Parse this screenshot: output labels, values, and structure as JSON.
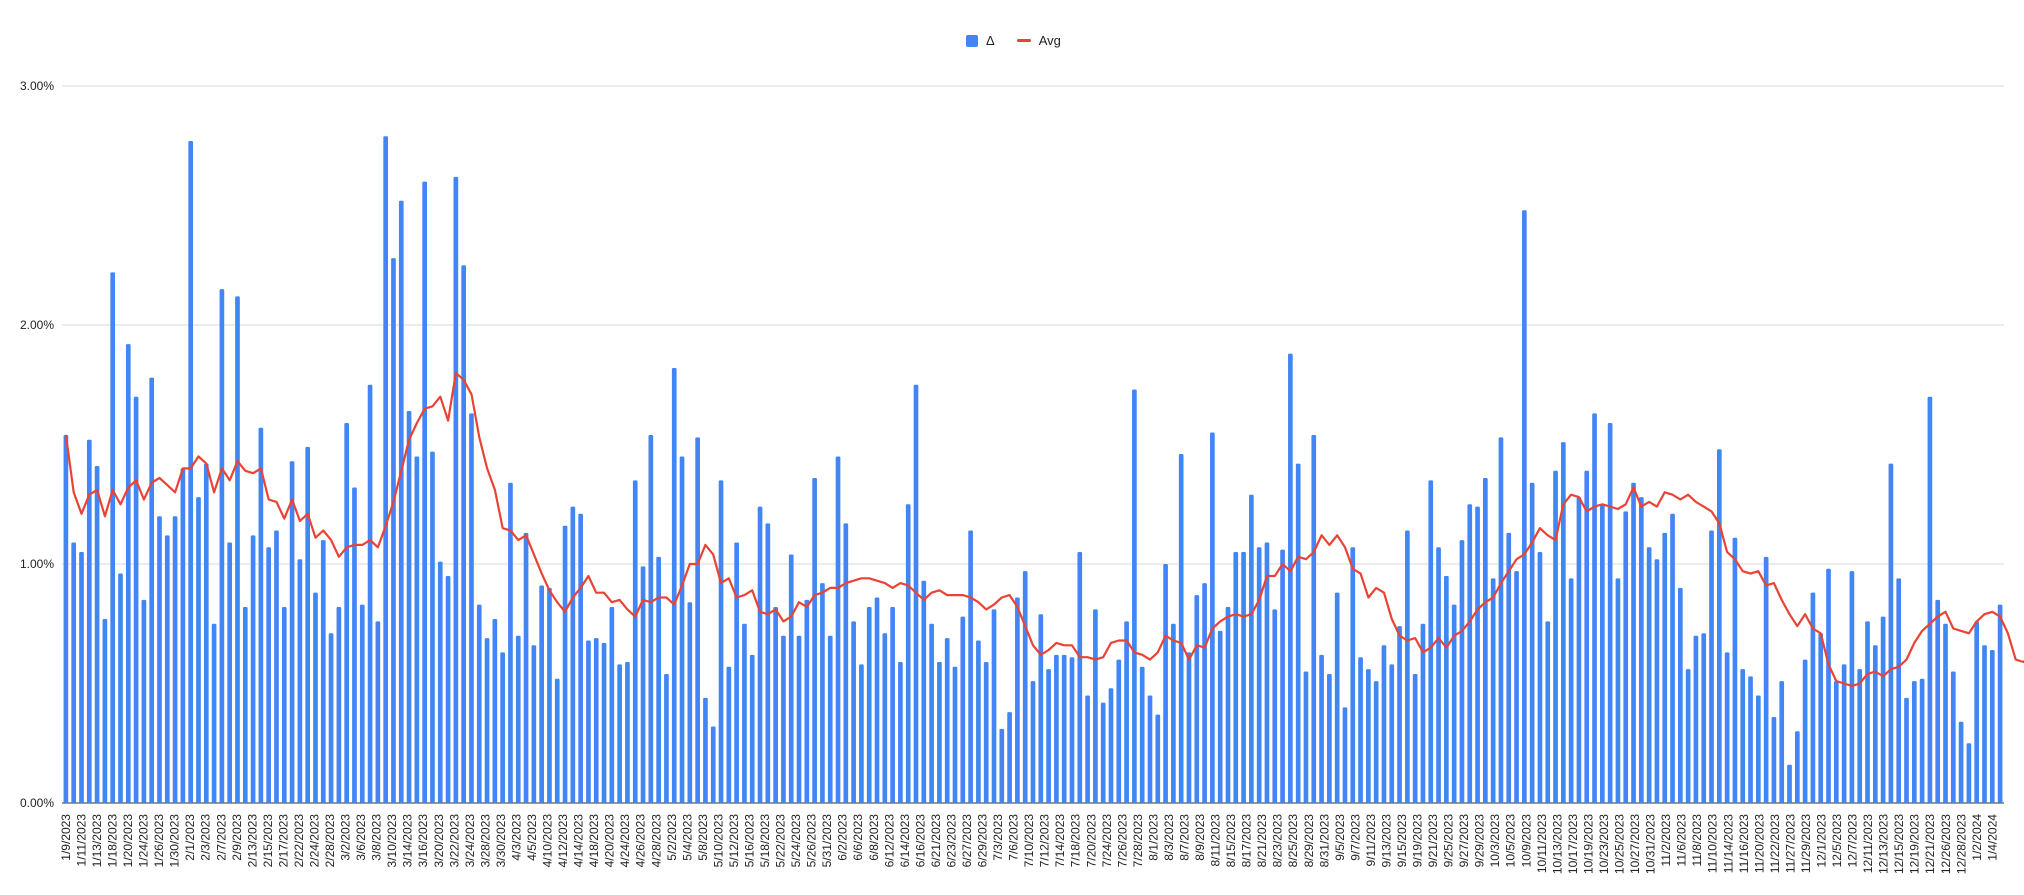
{
  "chart_data": {
    "type": "bar",
    "legend": {
      "position": "top",
      "bar_label": "Δ",
      "line_label": "Avg"
    },
    "yaxis": {
      "min": 0,
      "max": 0.03,
      "ticks": [
        "0.00%",
        "1.00%",
        "2.00%",
        "3.00%"
      ]
    },
    "grid": true,
    "colors": {
      "bar": "#4285f4",
      "line": "#ea4335",
      "grid": "#d9d9d9",
      "axis": "#333333"
    },
    "x_labels": [
      "1/9/2023",
      "1/11/2023",
      "1/13/2023",
      "1/18/2023",
      "1/20/2023",
      "1/24/2023",
      "1/26/2023",
      "1/30/2023",
      "2/1/2023",
      "2/3/2023",
      "2/7/2023",
      "2/9/2023",
      "2/13/2023",
      "2/15/2023",
      "2/17/2023",
      "2/22/2023",
      "2/24/2023",
      "2/28/2023",
      "3/2/2023",
      "3/6/2023",
      "3/8/2023",
      "3/10/2023",
      "3/14/2023",
      "3/16/2023",
      "3/20/2023",
      "3/22/2023",
      "3/24/2023",
      "3/28/2023",
      "3/30/2023",
      "4/3/2023",
      "4/5/2023",
      "4/10/2023",
      "4/12/2023",
      "4/14/2023",
      "4/18/2023",
      "4/20/2023",
      "4/24/2023",
      "4/26/2023",
      "4/28/2023",
      "5/2/2023",
      "5/4/2023",
      "5/8/2023",
      "5/10/2023",
      "5/12/2023",
      "5/16/2023",
      "5/18/2023",
      "5/22/2023",
      "5/24/2023",
      "5/26/2023",
      "5/31/2023",
      "6/2/2023",
      "6/6/2023",
      "6/8/2023",
      "6/12/2023",
      "6/14/2023",
      "6/16/2023",
      "6/21/2023",
      "6/23/2023",
      "6/27/2023",
      "6/29/2023",
      "7/3/2023",
      "7/6/2023",
      "7/10/2023",
      "7/12/2023",
      "7/14/2023",
      "7/18/2023",
      "7/20/2023",
      "7/24/2023",
      "7/26/2023",
      "7/28/2023",
      "8/1/2023",
      "8/3/2023",
      "8/7/2023",
      "8/9/2023",
      "8/11/2023",
      "8/15/2023",
      "8/17/2023",
      "8/21/2023",
      "8/23/2023",
      "8/25/2023",
      "8/29/2023",
      "8/31/2023",
      "9/5/2023",
      "9/7/2023",
      "9/11/2023",
      "9/13/2023",
      "9/15/2023",
      "9/19/2023",
      "9/21/2023",
      "9/25/2023",
      "9/27/2023",
      "9/29/2023",
      "10/3/2023",
      "10/5/2023",
      "10/9/2023",
      "10/11/2023",
      "10/13/2023",
      "10/17/2023",
      "10/19/2023",
      "10/23/2023",
      "10/25/2023",
      "10/27/2023",
      "10/31/2023",
      "11/2/2023",
      "11/6/2023",
      "11/8/2023",
      "11/10/2023",
      "11/14/2023",
      "11/16/2023",
      "11/20/2023",
      "11/22/2023",
      "11/27/2023",
      "11/29/2023",
      "12/1/2023",
      "12/5/2023",
      "12/7/2023",
      "12/11/2023",
      "12/13/2023",
      "12/15/2023",
      "12/19/2023",
      "12/21/2023",
      "12/26/2023",
      "12/28/2023",
      "1/2/2024",
      "1/4/2024"
    ],
    "values": [
      1.54,
      1.09,
      1.05,
      1.52,
      1.41,
      0.77,
      2.22,
      0.96,
      1.92,
      1.7,
      0.85,
      1.78,
      1.2,
      1.12,
      1.2,
      1.4,
      2.77,
      1.28,
      1.42,
      0.75,
      2.15,
      1.09,
      2.12,
      0.82,
      1.12,
      1.57,
      1.07,
      1.14,
      0.82,
      1.43,
      1.02,
      1.49,
      0.88,
      1.1,
      0.71,
      0.82,
      1.59,
      1.32,
      0.83,
      1.75,
      0.76,
      2.79,
      2.28,
      2.52,
      1.64,
      1.45,
      2.6,
      1.47,
      1.01,
      0.95,
      2.62,
      2.25,
      1.63,
      0.83,
      0.69,
      0.77,
      0.63,
      1.34,
      0.7,
      1.13,
      0.66,
      0.91,
      0.9,
      0.52,
      1.16,
      1.24,
      1.21,
      0.68,
      0.69,
      0.67,
      0.82,
      0.58,
      0.59,
      1.35,
      0.99,
      1.54,
      1.03,
      0.54,
      1.82,
      1.45,
      0.84,
      1.53,
      0.44,
      0.32,
      1.35,
      0.57,
      1.09,
      0.75,
      0.62,
      1.24,
      1.17,
      0.82,
      0.7,
      1.04,
      0.7,
      0.85,
      1.36,
      0.92,
      0.7,
      1.45,
      1.17,
      0.76,
      0.58,
      0.82,
      0.86,
      0.71,
      0.82,
      0.59,
      1.25,
      1.75,
      0.93,
      0.75,
      0.59,
      0.69,
      0.57,
      0.78,
      1.14,
      0.68,
      0.59,
      0.81,
      0.31,
      0.38,
      0.86,
      0.97,
      0.51,
      0.79,
      0.56,
      0.62,
      0.62,
      0.61,
      1.05,
      0.45,
      0.81,
      0.42,
      0.48,
      0.6,
      0.76,
      1.73,
      0.57,
      0.45,
      0.37,
      1.0,
      0.75,
      1.46,
      0.63,
      0.87,
      0.92,
      1.55,
      0.72,
      0.82,
      1.05,
      1.05,
      1.29,
      1.07,
      1.09,
      0.81,
      1.06,
      1.88,
      1.42,
      0.55,
      1.54,
      0.62,
      0.54,
      0.88,
      0.4,
      1.07,
      0.61,
      0.56,
      0.51,
      0.66,
      0.58,
      0.74,
      1.14,
      0.54,
      0.75,
      1.35,
      1.07,
      0.95,
      0.83,
      1.1,
      1.25,
      1.24,
      1.36,
      0.94,
      1.53,
      1.13,
      0.97,
      2.48,
      1.34,
      1.05,
      0.76,
      1.39,
      1.51,
      0.94,
      1.28,
      1.39,
      1.63,
      1.25,
      1.59,
      0.94,
      1.22,
      1.34,
      1.28,
      1.07,
      1.02,
      1.13,
      1.21,
      0.9,
      0.56,
      0.7,
      0.71,
      1.14,
      1.48,
      0.63,
      1.11,
      0.56,
      0.53,
      0.45,
      1.03,
      0.36,
      0.51,
      0.16,
      0.3,
      0.6,
      0.88,
      0.71,
      0.98,
      0.51,
      0.58,
      0.97,
      0.56,
      0.76,
      0.66,
      0.78,
      1.42,
      0.94,
      0.44,
      0.51,
      0.52,
      1.7,
      0.85,
      0.75,
      0.55,
      0.34,
      0.25,
      0.76,
      0.66,
      0.64,
      0.83
    ],
    "avg": [
      1.54,
      1.3,
      1.21,
      1.29,
      1.31,
      1.2,
      1.31,
      1.25,
      1.32,
      1.35,
      1.27,
      1.34,
      1.36,
      1.33,
      1.3,
      1.4,
      1.4,
      1.45,
      1.42,
      1.3,
      1.4,
      1.35,
      1.43,
      1.39,
      1.38,
      1.4,
      1.27,
      1.26,
      1.19,
      1.27,
      1.18,
      1.21,
      1.11,
      1.14,
      1.1,
      1.03,
      1.07,
      1.08,
      1.08,
      1.1,
      1.07,
      1.16,
      1.26,
      1.39,
      1.52,
      1.59,
      1.65,
      1.66,
      1.7,
      1.6,
      1.8,
      1.77,
      1.71,
      1.53,
      1.4,
      1.31,
      1.15,
      1.14,
      1.1,
      1.12,
      1.04,
      0.96,
      0.89,
      0.84,
      0.8,
      0.86,
      0.9,
      0.95,
      0.88,
      0.88,
      0.84,
      0.85,
      0.81,
      0.78,
      0.85,
      0.84,
      0.86,
      0.86,
      0.83,
      0.91,
      1.0,
      1.0,
      1.08,
      1.04,
      0.92,
      0.94,
      0.86,
      0.87,
      0.89,
      0.8,
      0.79,
      0.81,
      0.76,
      0.78,
      0.84,
      0.82,
      0.87,
      0.88,
      0.9,
      0.9,
      0.92,
      0.93,
      0.94,
      0.94,
      0.93,
      0.92,
      0.9,
      0.92,
      0.91,
      0.88,
      0.85,
      0.88,
      0.89,
      0.87,
      0.87,
      0.87,
      0.86,
      0.84,
      0.81,
      0.83,
      0.86,
      0.87,
      0.82,
      0.74,
      0.66,
      0.62,
      0.64,
      0.67,
      0.66,
      0.66,
      0.61,
      0.61,
      0.6,
      0.61,
      0.67,
      0.68,
      0.68,
      0.63,
      0.62,
      0.6,
      0.63,
      0.7,
      0.68,
      0.67,
      0.6,
      0.66,
      0.65,
      0.73,
      0.76,
      0.78,
      0.79,
      0.78,
      0.79,
      0.85,
      0.95,
      0.95,
      1.0,
      0.97,
      1.03,
      1.02,
      1.05,
      1.12,
      1.08,
      1.12,
      1.07,
      0.98,
      0.96,
      0.86,
      0.9,
      0.88,
      0.77,
      0.7,
      0.68,
      0.69,
      0.63,
      0.65,
      0.69,
      0.65,
      0.7,
      0.72,
      0.76,
      0.81,
      0.84,
      0.86,
      0.92,
      0.97,
      1.02,
      1.04,
      1.09,
      1.15,
      1.12,
      1.1,
      1.25,
      1.29,
      1.28,
      1.22,
      1.24,
      1.25,
      1.24,
      1.23,
      1.25,
      1.32,
      1.24,
      1.26,
      1.24,
      1.3,
      1.29,
      1.27,
      1.29,
      1.26,
      1.24,
      1.22,
      1.17,
      1.05,
      1.02,
      0.97,
      0.96,
      0.97,
      0.91,
      0.92,
      0.85,
      0.79,
      0.74,
      0.79,
      0.73,
      0.71,
      0.58,
      0.51,
      0.5,
      0.49,
      0.5,
      0.54,
      0.55,
      0.53,
      0.56,
      0.57,
      0.6,
      0.67,
      0.72,
      0.75,
      0.78,
      0.8,
      0.73,
      0.72,
      0.71,
      0.76,
      0.79,
      0.8,
      0.78,
      0.71,
      0.6,
      0.59,
      0.62,
      0.62,
      0.65
    ]
  }
}
